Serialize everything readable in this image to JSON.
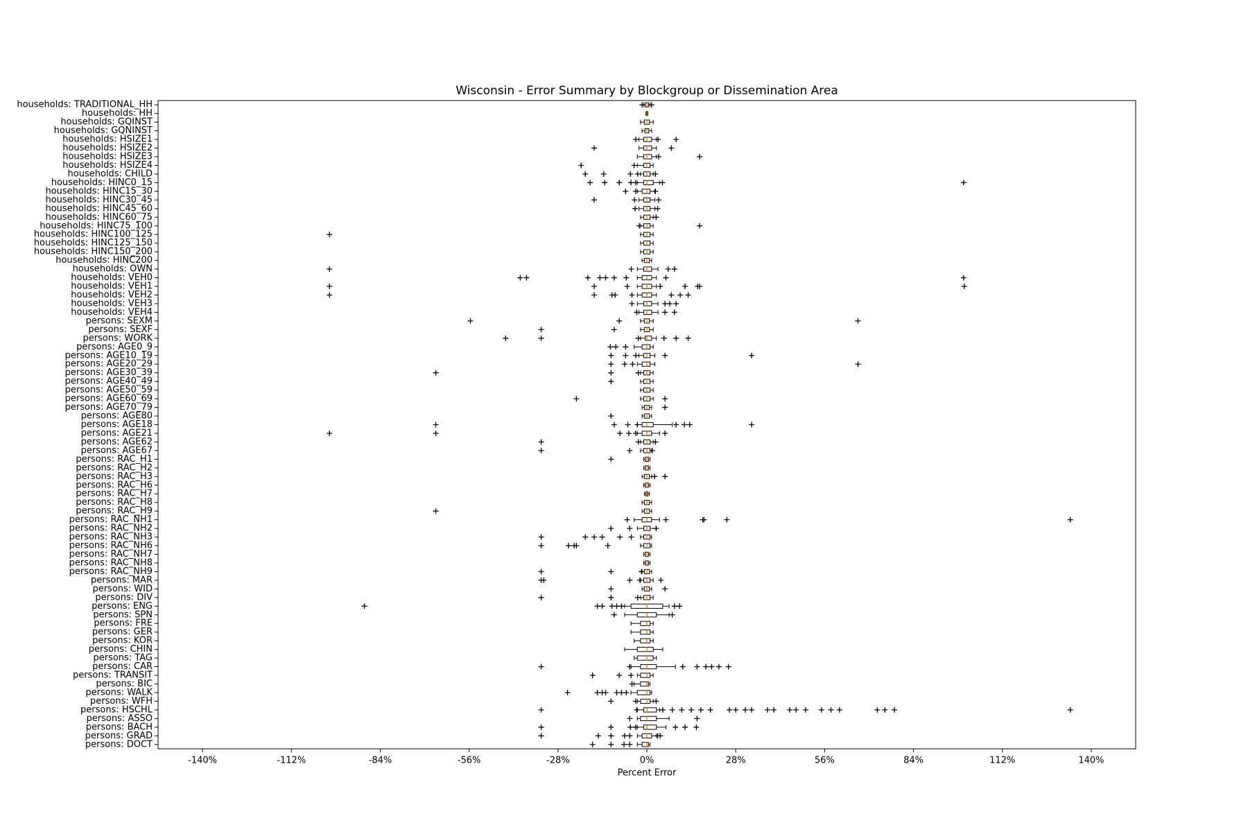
{
  "chart_data": {
    "type": "boxplot",
    "orientation": "horizontal",
    "title": "Wisconsin - Error Summary by Blockgroup or Dissemination Area",
    "xlabel": "Percent Error",
    "xlim": [
      -154,
      154
    ],
    "xticks": [
      {
        "value": -140,
        "label": "-140%"
      },
      {
        "value": -112,
        "label": "-112%"
      },
      {
        "value": -84,
        "label": "-84%"
      },
      {
        "value": -56,
        "label": "-56%"
      },
      {
        "value": -28,
        "label": "-28%"
      },
      {
        "value": 0,
        "label": "0%"
      },
      {
        "value": 28,
        "label": "28%"
      },
      {
        "value": 56,
        "label": "56%"
      },
      {
        "value": 84,
        "label": "84%"
      },
      {
        "value": 112,
        "label": "112%"
      },
      {
        "value": 140,
        "label": "140%"
      }
    ],
    "box_color": "#000000",
    "median_color": "#ff7f0e",
    "flier_color": "#000000",
    "categories": [
      "households: TRADITIONAL_HH",
      "households: HH",
      "households: GQINST",
      "households: GQNINST",
      "households: HSIZE1",
      "households: HSIZE2",
      "households: HSIZE3",
      "households: HSIZE4",
      "households: CHILD",
      "households: HINC0_15",
      "households: HINC15_30",
      "households: HINC30_45",
      "households: HINC45_60",
      "households: HINC60_75",
      "households: HINC75_100",
      "households: HINC100_125",
      "households: HINC125_150",
      "households: HINC150_200",
      "households: HINC200",
      "households: OWN",
      "households: VEH0",
      "households: VEH1",
      "households: VEH2",
      "households: VEH3",
      "households: VEH4",
      "persons: SEXM",
      "persons: SEXF",
      "persons: WORK",
      "persons: AGE0_9",
      "persons: AGE10_19",
      "persons: AGE20_29",
      "persons: AGE30_39",
      "persons: AGE40_49",
      "persons: AGE50_59",
      "persons: AGE60_69",
      "persons: AGE70_79",
      "persons: AGE80",
      "persons: AGE18",
      "persons: AGE21",
      "persons: AGE62",
      "persons: AGE67",
      "persons: RAC_H1",
      "persons: RAC_H2",
      "persons: RAC_H3",
      "persons: RAC_H6",
      "persons: RAC_H7",
      "persons: RAC_H8",
      "persons: RAC_H9",
      "persons: RAC_NH1",
      "persons: RAC_NH2",
      "persons: RAC_NH3",
      "persons: RAC_NH6",
      "persons: RAC_NH7",
      "persons: RAC_NH8",
      "persons: RAC_NH9",
      "persons: MAR",
      "persons: WID",
      "persons: DIV",
      "persons: ENG",
      "persons: SPN",
      "persons: FRE",
      "persons: GER",
      "persons: KOR",
      "persons: CHIN",
      "persons: TAG",
      "persons: CAR",
      "persons: TRANSIT",
      "persons: BIC",
      "persons: WALK",
      "persons: WFH",
      "persons: HSCHL",
      "persons: ASSO",
      "persons: BACH",
      "persons: GRAD",
      "persons: DOCT"
    ],
    "boxes": [
      {
        "low": -1,
        "q1": -0.5,
        "median": 0,
        "q3": 0.5,
        "high": 1,
        "fliers": [
          -1.5,
          1.5
        ]
      },
      {
        "low": -0.3,
        "q1": -0.1,
        "median": 0,
        "q3": 0.1,
        "high": 0.3,
        "fliers": []
      },
      {
        "low": -2,
        "q1": -0.8,
        "median": 0,
        "q3": 0.8,
        "high": 2,
        "fliers": []
      },
      {
        "low": -1.5,
        "q1": -0.6,
        "median": 0,
        "q3": 0.6,
        "high": 1.5,
        "fliers": []
      },
      {
        "low": -2.5,
        "q1": -1,
        "median": 0,
        "q3": 1.5,
        "high": 3,
        "fliers": [
          -3.5,
          3.5,
          9.2
        ]
      },
      {
        "low": -2.5,
        "q1": -1,
        "median": 0,
        "q3": 1.5,
        "high": 3,
        "fliers": [
          -16.6,
          7.7
        ]
      },
      {
        "low": -3,
        "q1": -1,
        "median": 0,
        "q3": 1.5,
        "high": 3,
        "fliers": [
          3.7,
          16.6
        ]
      },
      {
        "low": -3,
        "q1": -1,
        "median": 0,
        "q3": 1,
        "high": 2,
        "fliers": [
          -20.7,
          -4
        ]
      },
      {
        "low": -2,
        "q1": -1,
        "median": 0,
        "q3": 1,
        "high": 2,
        "fliers": [
          -19.4,
          -13.6,
          -5.2,
          -2.9,
          2.7
        ]
      },
      {
        "low": -3,
        "q1": -1,
        "median": 0,
        "q3": 2,
        "high": 4,
        "fliers": [
          -17.9,
          -13.3,
          -8.7,
          -5,
          -3.5,
          4.9,
          99.8
        ]
      },
      {
        "low": -3,
        "q1": -1.5,
        "median": 0,
        "q3": 1,
        "high": 2.5,
        "fliers": [
          -6.7,
          -3.5,
          2.7
        ]
      },
      {
        "low": -2.5,
        "q1": -1,
        "median": 0,
        "q3": 1,
        "high": 2.5,
        "fliers": [
          -16.6,
          -3.9,
          3.7
        ]
      },
      {
        "low": -2.5,
        "q1": -1,
        "median": 0,
        "q3": 1,
        "high": 2.5,
        "fliers": [
          -3.7,
          3.4
        ]
      },
      {
        "low": -2,
        "q1": -1,
        "median": 0,
        "q3": 1,
        "high": 2,
        "fliers": [
          2.9
        ]
      },
      {
        "low": -2,
        "q1": -1,
        "median": 0,
        "q3": 1,
        "high": 2,
        "fliers": [
          -2.4,
          16.6
        ]
      },
      {
        "low": -2,
        "q1": -1,
        "median": 0,
        "q3": 1,
        "high": 2,
        "fliers": [
          -100
        ]
      },
      {
        "low": -2,
        "q1": -1,
        "median": 0,
        "q3": 1,
        "high": 2,
        "fliers": []
      },
      {
        "low": -2,
        "q1": -1,
        "median": 0,
        "q3": 1,
        "high": 2,
        "fliers": []
      },
      {
        "low": -1.5,
        "q1": -0.8,
        "median": 0,
        "q3": 0.8,
        "high": 1.5,
        "fliers": []
      },
      {
        "low": -3,
        "q1": -1,
        "median": 0,
        "q3": 1.5,
        "high": 3.5,
        "fliers": [
          -100,
          -4.9,
          6.7,
          8.7
        ]
      },
      {
        "low": -3,
        "q1": -1.5,
        "median": 0,
        "q3": 1.5,
        "high": 3,
        "fliers": [
          -39.9,
          -37.9,
          -18.6,
          -14.8,
          -13,
          -10.3,
          -6.5,
          6,
          99.8
        ]
      },
      {
        "low": -3,
        "q1": -1.5,
        "median": 0,
        "q3": 1.5,
        "high": 3,
        "fliers": [
          -100,
          -16.6,
          -6.2,
          4.2,
          12,
          16,
          16.6,
          100
        ]
      },
      {
        "low": -3,
        "q1": -1.5,
        "median": 0,
        "q3": 1.5,
        "high": 3,
        "fliers": [
          -100,
          -16.6,
          -11,
          -10,
          -4.7,
          7.7,
          10.5,
          13
        ]
      },
      {
        "low": -3,
        "q1": -1,
        "median": 0,
        "q3": 1.5,
        "high": 3.5,
        "fliers": [
          -4.7,
          5.7,
          7.2,
          9.2
        ]
      },
      {
        "low": -2.5,
        "q1": -1,
        "median": 0,
        "q3": 1.5,
        "high": 3.5,
        "fliers": [
          -3.2,
          5.7,
          8.7
        ]
      },
      {
        "low": -2,
        "q1": -0.8,
        "median": 0,
        "q3": 0.8,
        "high": 2,
        "fliers": [
          -55.6,
          -8.7,
          66.5
        ]
      },
      {
        "low": -2,
        "q1": -0.8,
        "median": 0,
        "q3": 0.8,
        "high": 2,
        "fliers": [
          -33.3,
          -10.3
        ]
      },
      {
        "low": -2,
        "q1": -0.5,
        "median": 0,
        "q3": 1.5,
        "high": 3,
        "fliers": [
          -44.5,
          -33.3,
          -2.7,
          5.4,
          9.2,
          13
        ]
      },
      {
        "low": -4,
        "q1": -1.5,
        "median": 0,
        "q3": 1,
        "high": 2,
        "fliers": [
          -11.5,
          -9.8,
          -6.7
        ]
      },
      {
        "low": -2.5,
        "q1": -1,
        "median": 0,
        "q3": 1,
        "high": 2.5,
        "fliers": [
          -11.3,
          -6.7,
          -3.5,
          5.7,
          33
        ]
      },
      {
        "low": -3,
        "q1": -1.5,
        "median": 0,
        "q3": 1,
        "high": 2.5,
        "fliers": [
          -11.3,
          -7,
          -4.5,
          66.5
        ]
      },
      {
        "low": -2,
        "q1": -1,
        "median": 0,
        "q3": 1,
        "high": 2,
        "fliers": [
          -66.5,
          -11.3,
          -2.7
        ]
      },
      {
        "low": -2,
        "q1": -1,
        "median": 0,
        "q3": 1,
        "high": 2,
        "fliers": [
          -11.3
        ]
      },
      {
        "low": -2,
        "q1": -1,
        "median": 0,
        "q3": 1,
        "high": 2,
        "fliers": []
      },
      {
        "low": -2,
        "q1": -1,
        "median": 0,
        "q3": 1,
        "high": 2,
        "fliers": [
          -22.2,
          5.7
        ]
      },
      {
        "low": -1.5,
        "q1": -0.8,
        "median": 0,
        "q3": 0.8,
        "high": 1.5,
        "fliers": [
          5.7
        ]
      },
      {
        "low": -1.5,
        "q1": -0.8,
        "median": 0,
        "q3": 0.8,
        "high": 1.5,
        "fliers": [
          -11.3
        ]
      },
      {
        "low": -3,
        "q1": -1.5,
        "median": 0,
        "q3": 2,
        "high": 8,
        "fliers": [
          -66.5,
          -10.3,
          -6,
          -3,
          9.2,
          11.8,
          13.5,
          33
        ]
      },
      {
        "low": -3,
        "q1": -1.5,
        "median": 0,
        "q3": 1.5,
        "high": 4,
        "fliers": [
          -100,
          -66.5,
          -8.5,
          -5.7,
          -3.5,
          5.7
        ]
      },
      {
        "low": -2,
        "q1": -1,
        "median": 0,
        "q3": 1,
        "high": 2,
        "fliers": [
          -33.3,
          -2.7,
          2.7
        ]
      },
      {
        "low": -2,
        "q1": -1,
        "median": 0,
        "q3": 1,
        "high": 1.5,
        "fliers": [
          -33.3,
          -5.4,
          1.7
        ]
      },
      {
        "low": -1,
        "q1": -0.5,
        "median": 0,
        "q3": 0.5,
        "high": 1,
        "fliers": [
          -11.3
        ]
      },
      {
        "low": -1,
        "q1": -0.5,
        "median": 0,
        "q3": 0.5,
        "high": 1,
        "fliers": []
      },
      {
        "low": -1.5,
        "q1": -0.8,
        "median": 0,
        "q3": 0.8,
        "high": 1.5,
        "fliers": [
          2.4,
          5.7
        ]
      },
      {
        "low": -1,
        "q1": -0.5,
        "median": 0,
        "q3": 0.5,
        "high": 1,
        "fliers": []
      },
      {
        "low": -0.8,
        "q1": -0.3,
        "median": 0,
        "q3": 0.3,
        "high": 0.8,
        "fliers": []
      },
      {
        "low": -1.5,
        "q1": -0.8,
        "median": 0,
        "q3": 0.8,
        "high": 1.5,
        "fliers": []
      },
      {
        "low": -1.5,
        "q1": -0.8,
        "median": 0,
        "q3": 0.8,
        "high": 1.5,
        "fliers": [
          -66.5
        ]
      },
      {
        "low": -4,
        "q1": -1.5,
        "median": 0,
        "q3": 1.5,
        "high": 4,
        "fliers": [
          -6.2,
          6,
          17.6,
          18,
          25.2,
          133.4
        ]
      },
      {
        "low": -3,
        "q1": -1,
        "median": 0,
        "q3": 1,
        "high": 3,
        "fliers": [
          -11.3,
          -5.4,
          2.9
        ]
      },
      {
        "low": -2,
        "q1": -1,
        "median": 0,
        "q3": 1,
        "high": 1.5,
        "fliers": [
          -33.3,
          -19.4,
          -16.6,
          -14.1,
          -8.5,
          -4.9
        ]
      },
      {
        "low": -2,
        "q1": -1,
        "median": 0,
        "q3": 1,
        "high": 1.5,
        "fliers": [
          -33.3,
          -24.7,
          -22.9,
          -22.2,
          -12.3
        ]
      },
      {
        "low": -1,
        "q1": -0.5,
        "median": 0,
        "q3": 0.5,
        "high": 1,
        "fliers": []
      },
      {
        "low": -1,
        "q1": -0.5,
        "median": 0,
        "q3": 0.5,
        "high": 1,
        "fliers": []
      },
      {
        "low": -1.5,
        "q1": -0.8,
        "median": 0,
        "q3": 0.8,
        "high": 1.5,
        "fliers": [
          -33.3,
          -11.3,
          -1.7
        ]
      },
      {
        "low": -2,
        "q1": -1,
        "median": 0,
        "q3": 1,
        "high": 2,
        "fliers": [
          -33.3,
          -32.5,
          -5.4,
          -2.2,
          4.4
        ]
      },
      {
        "low": -1.5,
        "q1": -0.8,
        "median": 0,
        "q3": 0.8,
        "high": 1.5,
        "fliers": [
          -11.3,
          5.7
        ]
      },
      {
        "low": -2,
        "q1": -1,
        "median": 0,
        "q3": 1,
        "high": 2,
        "fliers": [
          -33.3,
          -11.3,
          -2.9
        ]
      },
      {
        "low": -7,
        "q1": -5,
        "median": 0,
        "q3": 5,
        "high": 7,
        "fliers": [
          -89,
          -15.6,
          -14.1,
          -11,
          -9.5,
          -8,
          8.7,
          10.3
        ]
      },
      {
        "low": -7,
        "q1": -3,
        "median": 0,
        "q3": 3,
        "high": 7,
        "fliers": [
          -10.3,
          8
        ]
      },
      {
        "low": -5,
        "q1": -2,
        "median": 0,
        "q3": 1,
        "high": 2,
        "fliers": []
      },
      {
        "low": -5,
        "q1": -2,
        "median": 0,
        "q3": 1,
        "high": 2,
        "fliers": []
      },
      {
        "low": -4,
        "q1": -2,
        "median": 0,
        "q3": 1,
        "high": 2,
        "fliers": []
      },
      {
        "low": -7,
        "q1": -3,
        "median": 0,
        "q3": 2,
        "high": 5,
        "fliers": []
      },
      {
        "low": -4,
        "q1": -3,
        "median": 0,
        "q3": 2,
        "high": 3,
        "fliers": []
      },
      {
        "low": -5,
        "q1": -2,
        "median": 0,
        "q3": 3,
        "high": 9,
        "fliers": [
          -33.3,
          -5.4,
          11.3,
          15.8,
          18.6,
          20.4,
          22.7,
          25.7
        ]
      },
      {
        "low": -3,
        "q1": -2,
        "median": 0,
        "q3": 1,
        "high": 2,
        "fliers": [
          -17.1,
          -8.7,
          -5
        ]
      },
      {
        "low": -4,
        "q1": -2,
        "median": 0,
        "q3": 0.5,
        "high": 1,
        "fliers": [
          -4.7
        ]
      },
      {
        "low": -5,
        "q1": -3,
        "median": 0,
        "q3": 1,
        "high": 1.5,
        "fliers": [
          -25,
          -15.6,
          -14.1,
          -13,
          -9.5,
          -8,
          -6.5
        ]
      },
      {
        "low": -3,
        "q1": -2,
        "median": 0,
        "q3": 1,
        "high": 2,
        "fliers": [
          -11.3,
          -3.5,
          2.9
        ]
      },
      {
        "low": -3,
        "q1": -1,
        "median": 0,
        "q3": 3,
        "high": 4,
        "fliers": [
          -33.3,
          -3.2,
          5,
          8,
          11,
          14,
          17,
          20,
          26,
          28,
          31,
          33,
          38,
          40,
          45,
          47,
          50,
          55,
          58,
          60.7,
          72.6,
          75,
          78,
          133.4
        ]
      },
      {
        "low": -3,
        "q1": -2,
        "median": 0,
        "q3": 3,
        "high": 7,
        "fliers": [
          -5.4,
          15.8
        ]
      },
      {
        "low": -3,
        "q1": -1,
        "median": 0,
        "q3": 3,
        "high": 6,
        "fliers": [
          -33.3,
          -11.3,
          -5.2,
          -3.5,
          9,
          12,
          15.6
        ]
      },
      {
        "low": -3,
        "q1": -1.5,
        "median": 0,
        "q3": 1.5,
        "high": 3,
        "fliers": [
          -33.3,
          -15.3,
          -11.3,
          -7,
          -5.4,
          3.4,
          4.2
        ]
      },
      {
        "low": -3,
        "q1": -1.5,
        "median": 0,
        "q3": 0.5,
        "high": 1,
        "fliers": [
          -17.1,
          -11.3,
          -7.2,
          -5.4
        ]
      }
    ]
  }
}
